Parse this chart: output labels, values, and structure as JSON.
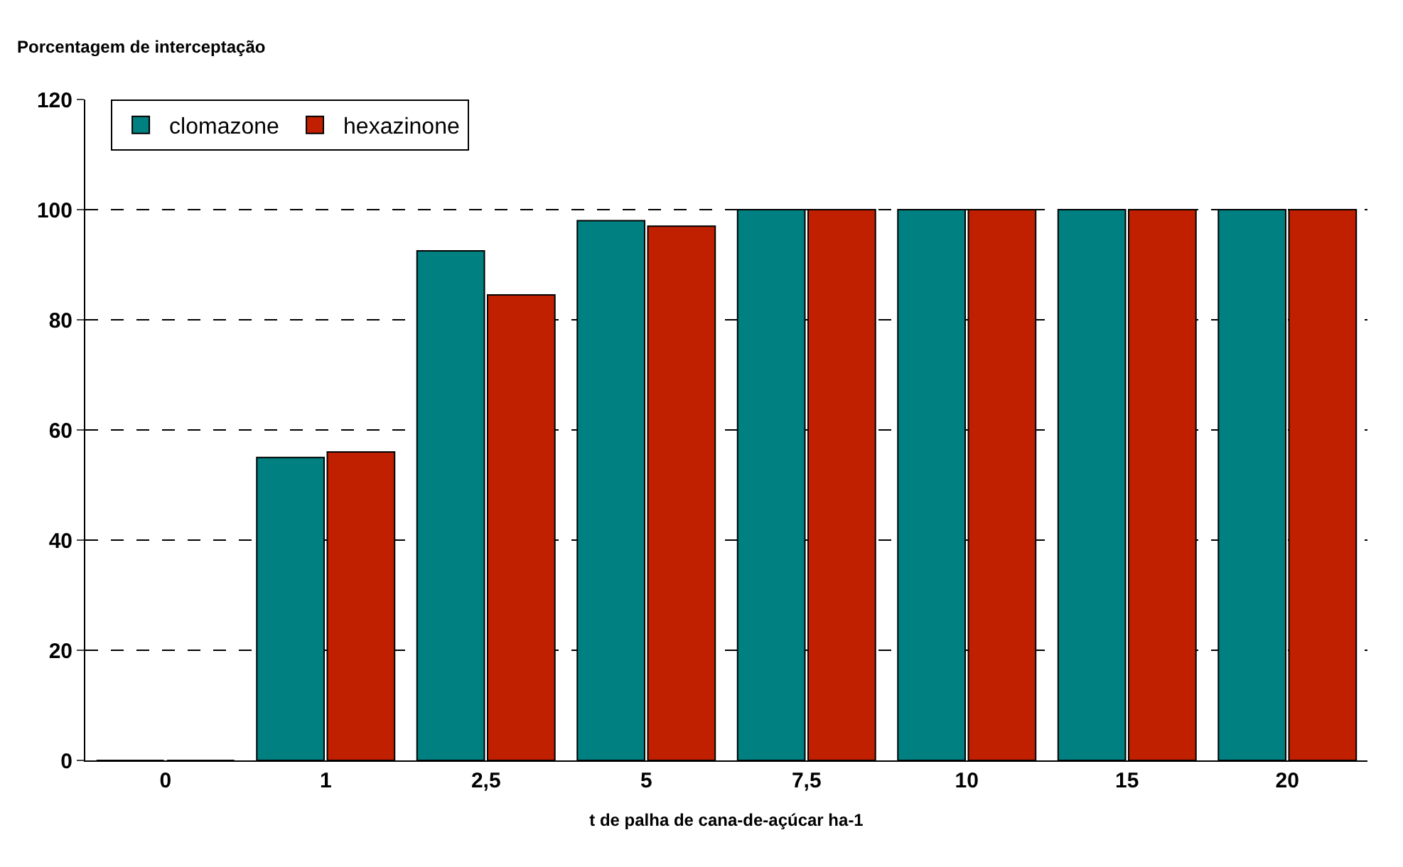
{
  "chart_data": {
    "type": "bar",
    "ylabel": "Porcentagem de interceptação",
    "xlabel": "t de palha de cana-de-açúcar ha-1",
    "categories": [
      "0",
      "1",
      "2,5",
      "5",
      "7,5",
      "10",
      "15",
      "20"
    ],
    "series": [
      {
        "name": "clomazone",
        "color": "#008080",
        "values": [
          0,
          55,
          92.5,
          98,
          100,
          100,
          100,
          100
        ]
      },
      {
        "name": "hexazinone",
        "color": "#c02000",
        "values": [
          0,
          56,
          84.5,
          97,
          100,
          100,
          100,
          100
        ]
      }
    ],
    "ylim": [
      0,
      120
    ],
    "yticks": [
      0,
      20,
      40,
      60,
      80,
      100,
      120
    ],
    "grid": "y",
    "legend": "top left"
  }
}
